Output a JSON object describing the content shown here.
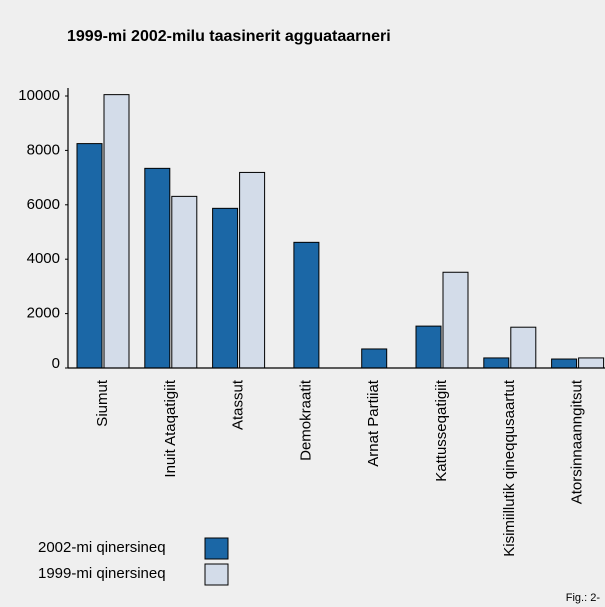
{
  "chart_data": {
    "type": "bar",
    "title": "1999-mi 2002-milu taasinerit agguataarneri",
    "categories": [
      "Siumut",
      "Inuit Ataqatigiit",
      "Atassut",
      "Demokraatit",
      "Arnat Partiiat",
      "Kattusseqatigiit",
      "Kisimiillutik qineqqusaartut",
      "Atorsinnaanngitsut"
    ],
    "series": [
      {
        "name": "2002-mi qinersineq",
        "color": "#1b67a6",
        "values": [
          8250,
          7340,
          5870,
          4620,
          700,
          1540,
          370,
          330
        ]
      },
      {
        "name": "1999-mi qinersineq",
        "color": "#d3dce9",
        "values": [
          10050,
          6310,
          7190,
          null,
          null,
          3520,
          1500,
          370
        ]
      }
    ],
    "ylim": [
      0,
      10000
    ],
    "yticks": [
      0,
      2000,
      4000,
      6000,
      8000,
      10000
    ],
    "legend": "bottom-left",
    "note": "Fig.: 2-"
  }
}
